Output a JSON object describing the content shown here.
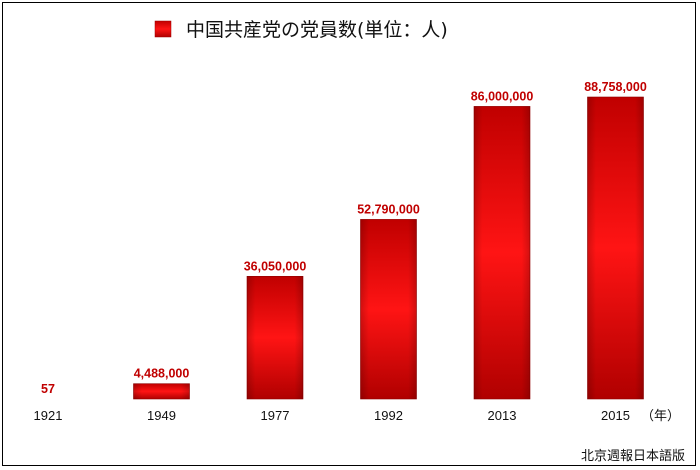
{
  "chart_data": {
    "type": "bar",
    "categories": [
      "1921",
      "1949",
      "1977",
      "1992",
      "2013",
      "2015"
    ],
    "series": [
      {
        "name": "中国共産党の党員数(単位：人)",
        "values": [
          57,
          4488000,
          36050000,
          52790000,
          86000000,
          88758000
        ]
      }
    ],
    "value_labels": [
      "57",
      "4,488,000",
      "36,050,000",
      "52,790,000",
      "86,000,000",
      "88,758,000"
    ],
    "x_unit": "（年）",
    "ylim": [
      0,
      88758000
    ],
    "legend_position": "top-center",
    "grid": false,
    "source": "北京週報日本語版",
    "colors": {
      "bar_dark": "#b00000",
      "bar_light": "#ff1a1a",
      "label": "#c00000"
    }
  }
}
